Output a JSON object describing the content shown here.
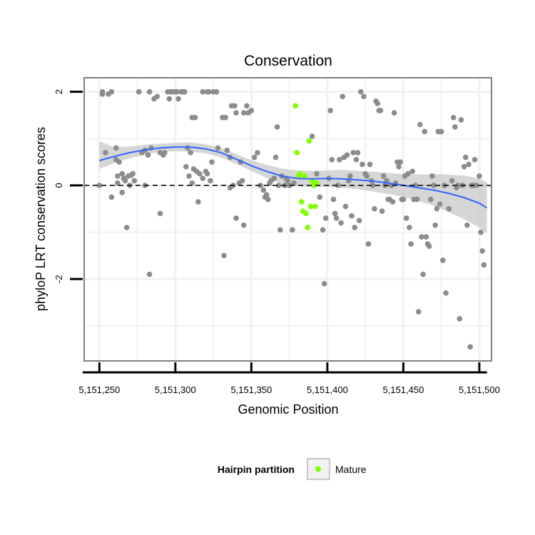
{
  "chart_data": {
    "type": "scatter",
    "title": "Conservation",
    "xlabel": "Genomic Position",
    "ylabel": "phyloP LRT conservation scores",
    "xlim": [
      5151240,
      5151508
    ],
    "ylim": [
      -3.75,
      2.3
    ],
    "xticks": [
      5151250,
      5151300,
      5151350,
      5151400,
      5151450,
      5151500
    ],
    "xtick_labels": [
      "5,151,250",
      "5,151,300",
      "5,151,350",
      "5,151,400",
      "5,151,450",
      "5,151,500"
    ],
    "yticks": [
      2,
      0,
      -2
    ],
    "ytick_labels": [
      "2",
      "0",
      "-2"
    ],
    "minor_grid_y": [
      1,
      -1,
      -3
    ],
    "minor_grid_x": [
      5151275,
      5151325,
      5151375,
      5151425,
      5151475
    ],
    "reference_line": {
      "y": 0,
      "style": "dashed"
    },
    "legend": {
      "title": "Hairpin partition",
      "position": "bottom",
      "entries": [
        {
          "label": "Mature",
          "color": "#7fff00"
        }
      ]
    },
    "colors": {
      "background": "#ffffff",
      "panel_border": "#7f7f7f",
      "grid": "#f2f2f2",
      "other_points": "#8c8c8c",
      "mature_points": "#7fff00",
      "smooth_line": "#3366ff",
      "ci_band": "#c8c8c8"
    },
    "series": [
      {
        "name": "Other",
        "points": [
          [
            5151252,
            2.0
          ],
          [
            5151252,
            1.95
          ],
          [
            5151254,
            0.7
          ],
          [
            5151256,
            1.95
          ],
          [
            5151258,
            2.0
          ],
          [
            5151261,
            0.55
          ],
          [
            5151263,
            0.5
          ],
          [
            5151261,
            0.8
          ],
          [
            5151262,
            0.2
          ],
          [
            5151265,
            0.25
          ],
          [
            5151266,
            0.15
          ],
          [
            5151267,
            0.1
          ],
          [
            5151269,
            0.2
          ],
          [
            5151271,
            0.22
          ],
          [
            5151272,
            0.25
          ],
          [
            5151273,
            0.1
          ],
          [
            5151258,
            -0.25
          ],
          [
            5151265,
            -0.15
          ],
          [
            5151268,
            -0.9
          ],
          [
            5151250,
            0.0
          ],
          [
            5151262,
            0.05
          ],
          [
            5151270,
            0.0
          ],
          [
            5151276,
            2.0
          ],
          [
            5151278,
            0.7
          ],
          [
            5151280,
            0.75
          ],
          [
            5151282,
            0.65
          ],
          [
            5151284,
            0.8
          ],
          [
            5151283,
            2.0
          ],
          [
            5151286,
            1.85
          ],
          [
            5151288,
            1.9
          ],
          [
            5151290,
            0.7
          ],
          [
            5151292,
            0.65
          ],
          [
            5151293,
            0.7
          ],
          [
            5151295,
            2.0
          ],
          [
            5151296,
            1.85
          ],
          [
            5151297,
            2.0
          ],
          [
            5151298,
            2.0
          ],
          [
            5151300,
            2.0
          ],
          [
            5151301,
            2.0
          ],
          [
            5151302,
            1.85
          ],
          [
            5151304,
            2.0
          ],
          [
            5151305,
            2.0
          ],
          [
            5151306,
            2.0
          ],
          [
            5151308,
            0.8
          ],
          [
            5151310,
            0.7
          ],
          [
            5151283,
            -1.9
          ],
          [
            5151290,
            -0.6
          ],
          [
            5151280,
            0.0
          ],
          [
            5151311,
            1.45
          ],
          [
            5151313,
            1.45
          ],
          [
            5151312,
            0.35
          ],
          [
            5151314,
            0.3
          ],
          [
            5151316,
            0.25
          ],
          [
            5151318,
            0.15
          ],
          [
            5151320,
            0.3
          ],
          [
            5151321,
            0.25
          ],
          [
            5151323,
            0.1
          ],
          [
            5151324,
            0.5
          ],
          [
            5151318,
            2.0
          ],
          [
            5151321,
            2.0
          ],
          [
            5151322,
            2.0
          ],
          [
            5151325,
            2.0
          ],
          [
            5151327,
            2.0
          ],
          [
            5151328,
            0.8
          ],
          [
            5151311,
            0.05
          ],
          [
            5151309,
            0.2
          ],
          [
            5151315,
            -0.35
          ],
          [
            5151307,
            0.4
          ],
          [
            5151331,
            1.45
          ],
          [
            5151333,
            1.45
          ],
          [
            5151334,
            0.75
          ],
          [
            5151336,
            0.6
          ],
          [
            5151337,
            1.7
          ],
          [
            5151339,
            1.7
          ],
          [
            5151340,
            1.55
          ],
          [
            5151343,
            0.5
          ],
          [
            5151345,
            1.55
          ],
          [
            5151347,
            1.7
          ],
          [
            5151348,
            1.55
          ],
          [
            5151350,
            1.6
          ],
          [
            5151352,
            0.6
          ],
          [
            5151354,
            0.7
          ],
          [
            5151340,
            -0.7
          ],
          [
            5151345,
            -0.85
          ],
          [
            5151332,
            -1.5
          ],
          [
            5151338,
            0.0
          ],
          [
            5151342,
            0.05
          ],
          [
            5151344,
            0.1
          ],
          [
            5151336,
            -0.05
          ],
          [
            5151356,
            0.0
          ],
          [
            5151358,
            -0.1
          ],
          [
            5151359,
            -0.25
          ],
          [
            5151360,
            -0.2
          ],
          [
            5151361,
            -0.3
          ],
          [
            5151362,
            0.05
          ],
          [
            5151363,
            0.1
          ],
          [
            5151365,
            0.15
          ],
          [
            5151366,
            0.6
          ],
          [
            5151367,
            1.25
          ],
          [
            5151368,
            0.0
          ],
          [
            5151369,
            -0.95
          ],
          [
            5151370,
            0.2
          ],
          [
            5151372,
            0.0
          ],
          [
            5151373,
            0.15
          ],
          [
            5151374,
            0.1
          ],
          [
            5151375,
            0.0
          ],
          [
            5151377,
            -0.95
          ],
          [
            5151378,
            0.05
          ],
          [
            5151390,
            1.05
          ],
          [
            5151393,
            0.25
          ],
          [
            5151395,
            -0.25
          ],
          [
            5151397,
            -0.95
          ],
          [
            5151398,
            -2.1
          ],
          [
            5151399,
            -0.7
          ],
          [
            5151401,
            0.15
          ],
          [
            5151402,
            1.6
          ],
          [
            5151403,
            0.55
          ],
          [
            5151404,
            -0.3
          ],
          [
            5151405,
            -0.6
          ],
          [
            5151406,
            -0.7
          ],
          [
            5151407,
            0.0
          ],
          [
            5151408,
            0.55
          ],
          [
            5151409,
            -0.8
          ],
          [
            5151410,
            1.9
          ],
          [
            5151411,
            0.6
          ],
          [
            5151412,
            -0.45
          ],
          [
            5151413,
            0.65
          ],
          [
            5151414,
            0.1
          ],
          [
            5151415,
            0.2
          ],
          [
            5151416,
            -0.65
          ],
          [
            5151417,
            0.7
          ],
          [
            5151418,
            -0.9
          ],
          [
            5151419,
            0.55
          ],
          [
            5151420,
            0.7
          ],
          [
            5151421,
            -0.75
          ],
          [
            5151422,
            2.0
          ],
          [
            5151423,
            0.45
          ],
          [
            5151424,
            1.9
          ],
          [
            5151425,
            0.25
          ],
          [
            5151426,
            0.2
          ],
          [
            5151427,
            -1.25
          ],
          [
            5151428,
            0.45
          ],
          [
            5151429,
            0.1
          ],
          [
            5151430,
            0.0
          ],
          [
            5151431,
            -0.5
          ],
          [
            5151432,
            1.8
          ],
          [
            5151433,
            1.75
          ],
          [
            5151434,
            1.6
          ],
          [
            5151435,
            1.6
          ],
          [
            5151436,
            -0.55
          ],
          [
            5151437,
            0.2
          ],
          [
            5151438,
            0.0
          ],
          [
            5151439,
            0.1
          ],
          [
            5151440,
            -0.3
          ],
          [
            5151441,
            -0.3
          ],
          [
            5151442,
            0.0
          ],
          [
            5151443,
            -0.35
          ],
          [
            5151444,
            1.55
          ],
          [
            5151445,
            0.05
          ],
          [
            5151446,
            0.5
          ],
          [
            5151447,
            0.4
          ],
          [
            5151448,
            0.5
          ],
          [
            5151449,
            -0.3
          ],
          [
            5151450,
            -0.3
          ],
          [
            5151451,
            0.2
          ],
          [
            5151452,
            -0.7
          ],
          [
            5151453,
            0.25
          ],
          [
            5151454,
            -0.9
          ],
          [
            5151455,
            -1.25
          ],
          [
            5151456,
            0.3
          ],
          [
            5151457,
            -0.3
          ],
          [
            5151458,
            0.0
          ],
          [
            5151459,
            -0.3
          ],
          [
            5151460,
            -2.7
          ],
          [
            5151461,
            1.3
          ],
          [
            5151462,
            -1.1
          ],
          [
            5151463,
            -1.9
          ],
          [
            5151464,
            1.15
          ],
          [
            5151465,
            -1.1
          ],
          [
            5151466,
            -1.25
          ],
          [
            5151467,
            -1.3
          ],
          [
            5151468,
            -0.3
          ],
          [
            5151469,
            0.2
          ],
          [
            5151470,
            0.0
          ],
          [
            5151471,
            -0.85
          ],
          [
            5151472,
            -0.5
          ],
          [
            5151473,
            1.15
          ],
          [
            5151474,
            -0.4
          ],
          [
            5151475,
            1.15
          ],
          [
            5151476,
            -1.6
          ],
          [
            5151477,
            0.0
          ],
          [
            5151478,
            -2.3
          ],
          [
            5151480,
            -0.5
          ],
          [
            5151482,
            0.1
          ],
          [
            5151483,
            1.45
          ],
          [
            5151484,
            1.25
          ],
          [
            5151485,
            -0.05
          ],
          [
            5151486,
            0.0
          ],
          [
            5151487,
            -2.85
          ],
          [
            5151488,
            1.4
          ],
          [
            5151489,
            0.0
          ],
          [
            5151490,
            0.4
          ],
          [
            5151491,
            0.6
          ],
          [
            5151492,
            -0.85
          ],
          [
            5151493,
            0.45
          ],
          [
            5151494,
            -3.45
          ],
          [
            5151495,
            0.0
          ],
          [
            5151496,
            0.0
          ],
          [
            5151497,
            0.55
          ],
          [
            5151498,
            0.0
          ],
          [
            5151500,
            0.2
          ],
          [
            5151501,
            -1.0
          ],
          [
            5151502,
            -1.4
          ],
          [
            5151503,
            -1.7
          ]
        ]
      },
      {
        "name": "Mature",
        "points": [
          [
            5151379,
            1.7
          ],
          [
            5151380,
            0.7
          ],
          [
            5151381,
            0.2
          ],
          [
            5151382,
            0.25
          ],
          [
            5151383,
            -0.35
          ],
          [
            5151384,
            -0.55
          ],
          [
            5151385,
            0.2
          ],
          [
            5151386,
            -0.6
          ],
          [
            5151387,
            -0.9
          ],
          [
            5151388,
            0.95
          ],
          [
            5151389,
            -0.45
          ],
          [
            5151390,
            0.1
          ],
          [
            5151391,
            0.0
          ],
          [
            5151392,
            -0.45
          ],
          [
            5151393,
            0.05
          ]
        ]
      }
    ],
    "smooth": {
      "x": [
        5151250,
        5151260,
        5151270,
        5151280,
        5151290,
        5151300,
        5151310,
        5151320,
        5151330,
        5151340,
        5151350,
        5151360,
        5151370,
        5151380,
        5151390,
        5151400,
        5151410,
        5151420,
        5151430,
        5151440,
        5151450,
        5151460,
        5151470,
        5151480,
        5151490,
        5151500,
        5151505
      ],
      "y": [
        0.53,
        0.62,
        0.7,
        0.76,
        0.8,
        0.82,
        0.82,
        0.78,
        0.7,
        0.56,
        0.42,
        0.3,
        0.2,
        0.15,
        0.14,
        0.15,
        0.14,
        0.12,
        0.09,
        0.05,
        0.0,
        -0.05,
        -0.1,
        -0.17,
        -0.26,
        -0.38,
        -0.48
      ],
      "lower": [
        0.35,
        0.48,
        0.58,
        0.66,
        0.71,
        0.73,
        0.72,
        0.68,
        0.6,
        0.46,
        0.31,
        0.16,
        0.04,
        -0.02,
        -0.03,
        -0.03,
        -0.05,
        -0.08,
        -0.13,
        -0.18,
        -0.24,
        -0.33,
        -0.44,
        -0.57,
        -0.72,
        -0.9,
        -1.02
      ],
      "upper": [
        0.94,
        0.82,
        0.83,
        0.87,
        0.89,
        0.91,
        0.92,
        0.88,
        0.8,
        0.67,
        0.54,
        0.44,
        0.36,
        0.32,
        0.31,
        0.32,
        0.33,
        0.31,
        0.29,
        0.27,
        0.24,
        0.23,
        0.24,
        0.23,
        0.21,
        0.15,
        0.06
      ]
    }
  }
}
